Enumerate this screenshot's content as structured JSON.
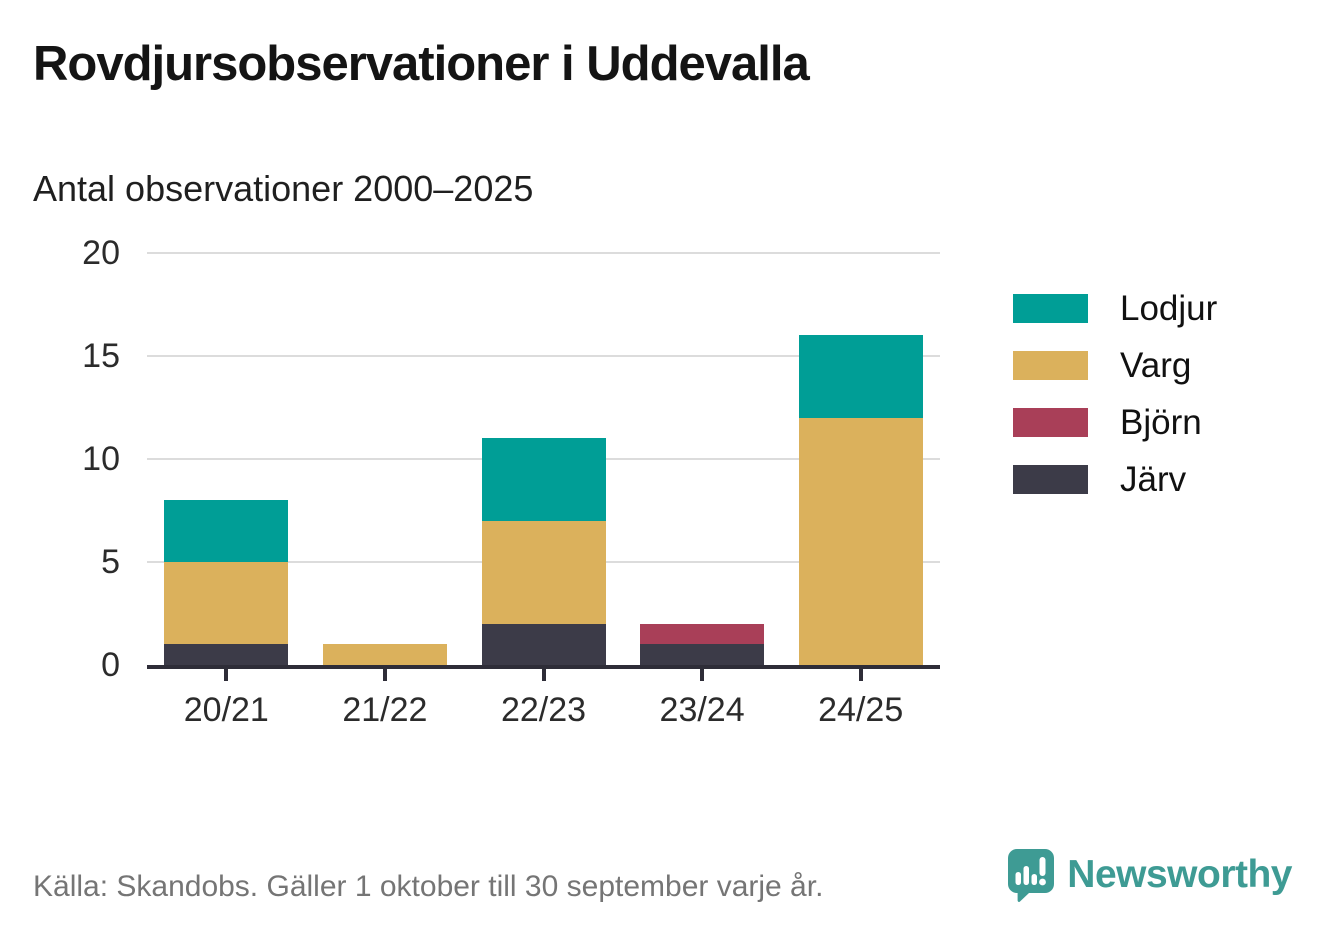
{
  "header": {
    "title": "Rovdjursobservationer i Uddevalla",
    "subtitle": "Antal observationer 2000–2025"
  },
  "chart_data": {
    "type": "bar",
    "stacked": true,
    "title": "Rovdjursobservationer i Uddevalla",
    "subtitle": "Antal observationer 2000–2025",
    "categories": [
      "20/21",
      "21/22",
      "22/23",
      "23/24",
      "24/25"
    ],
    "series": [
      {
        "name": "Lodjur",
        "color": "#009e96",
        "values": [
          3,
          0,
          4,
          0,
          4
        ]
      },
      {
        "name": "Varg",
        "color": "#dbb15c",
        "values": [
          4,
          1,
          5,
          0,
          12
        ]
      },
      {
        "name": "Björn",
        "color": "#a93f58",
        "values": [
          0,
          0,
          0,
          1,
          0
        ]
      },
      {
        "name": "Järv",
        "color": "#3c3b48",
        "values": [
          1,
          0,
          2,
          1,
          0
        ]
      }
    ],
    "totals": [
      8,
      1,
      11,
      2,
      16
    ],
    "ylim": [
      0,
      20
    ],
    "yticks": [
      0,
      5,
      10,
      15,
      20
    ],
    "grid": true,
    "legend_position": "right",
    "stack_order_bottom_to_top": [
      "Järv",
      "Björn",
      "Varg",
      "Lodjur"
    ]
  },
  "colors": {
    "axis": "#2e2d38",
    "gridline": "#dcdcdc",
    "title_text": "#141414",
    "footer_text": "#757575",
    "brand_teal": "#3e9b94"
  },
  "footer": {
    "source": "Källa: Skandobs. Gäller 1 oktober till 30 september varje år.",
    "brand": "Newsworthy"
  }
}
